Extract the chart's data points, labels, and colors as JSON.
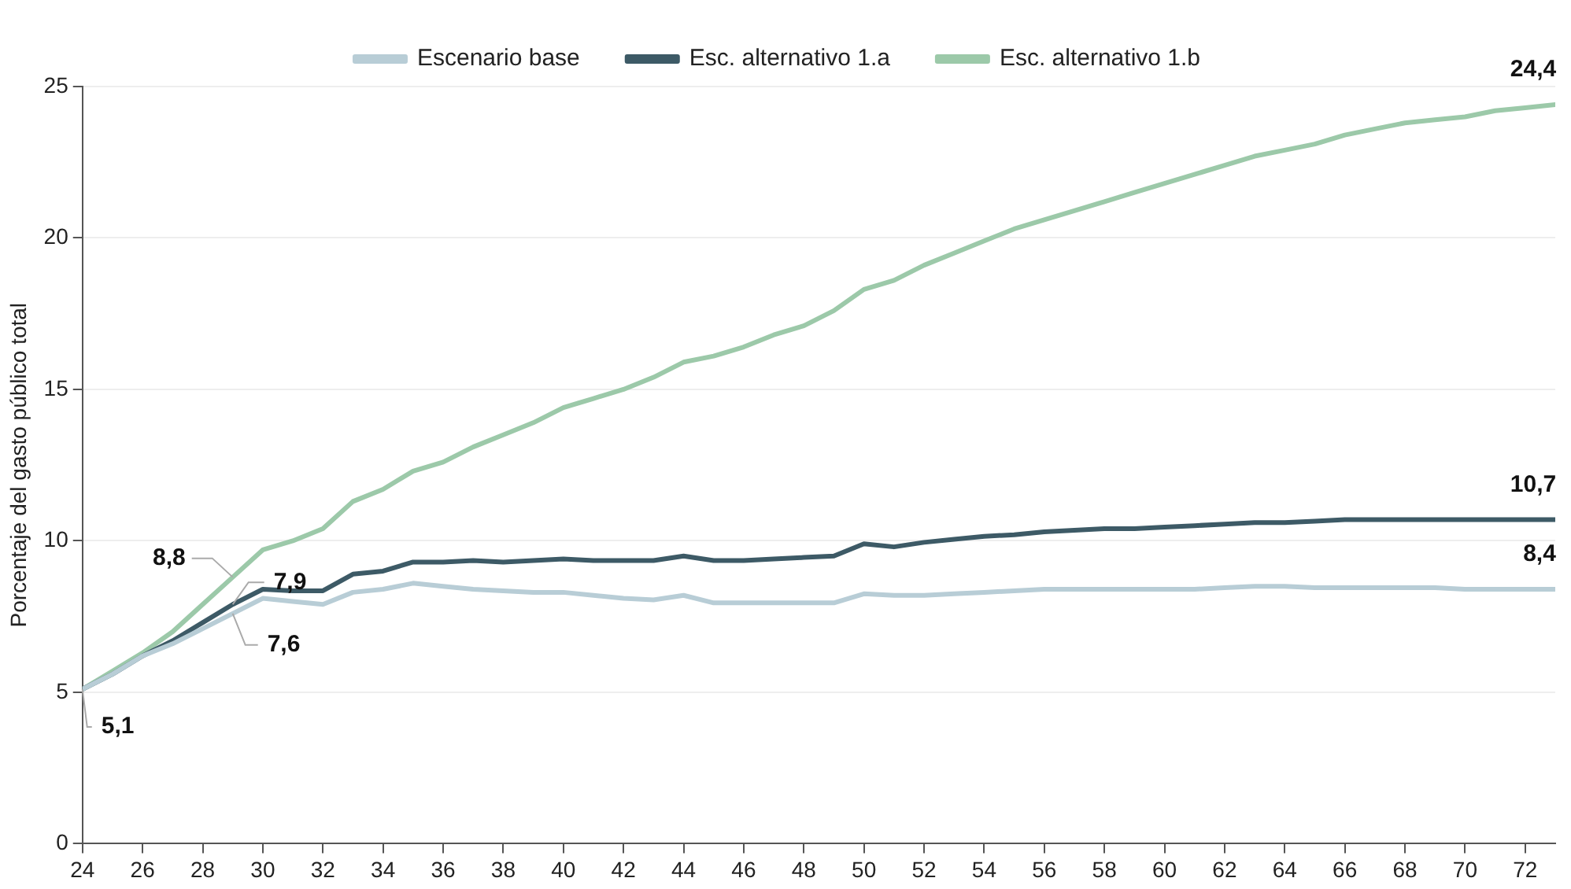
{
  "chart_data": {
    "type": "line",
    "ylabel": "Porcentaje del gasto público total",
    "x": [
      24,
      25,
      26,
      27,
      28,
      29,
      30,
      31,
      32,
      33,
      34,
      35,
      36,
      37,
      38,
      39,
      40,
      41,
      42,
      43,
      44,
      45,
      46,
      47,
      48,
      49,
      50,
      51,
      52,
      53,
      54,
      55,
      56,
      57,
      58,
      59,
      60,
      61,
      62,
      63,
      64,
      65,
      66,
      67,
      68,
      69,
      70,
      71,
      72,
      73
    ],
    "series": [
      {
        "name": "Escenario base",
        "color": "#b8cdd6",
        "values": [
          5.1,
          5.6,
          6.2,
          6.6,
          7.1,
          7.6,
          8.1,
          8.0,
          7.9,
          8.3,
          8.4,
          8.6,
          8.5,
          8.4,
          8.35,
          8.3,
          8.3,
          8.2,
          8.1,
          8.05,
          8.2,
          7.95,
          7.95,
          7.95,
          7.95,
          7.95,
          8.25,
          8.2,
          8.2,
          8.25,
          8.3,
          8.35,
          8.4,
          8.4,
          8.4,
          8.4,
          8.4,
          8.4,
          8.45,
          8.5,
          8.5,
          8.45,
          8.45,
          8.45,
          8.45,
          8.45,
          8.4,
          8.4,
          8.4,
          8.4
        ]
      },
      {
        "name": "Esc. alternativo 1.a",
        "color": "#3d5a66",
        "values": [
          5.1,
          5.6,
          6.2,
          6.7,
          7.3,
          7.9,
          8.4,
          8.35,
          8.35,
          8.9,
          9.0,
          9.3,
          9.3,
          9.35,
          9.3,
          9.35,
          9.4,
          9.35,
          9.35,
          9.35,
          9.5,
          9.35,
          9.35,
          9.4,
          9.45,
          9.5,
          9.9,
          9.8,
          9.95,
          10.05,
          10.15,
          10.2,
          10.3,
          10.35,
          10.4,
          10.4,
          10.45,
          10.5,
          10.55,
          10.6,
          10.6,
          10.65,
          10.7,
          10.7,
          10.7,
          10.7,
          10.7,
          10.7,
          10.7,
          10.7
        ]
      },
      {
        "name": "Esc. alternativo 1.b",
        "color": "#9cc9a9",
        "values": [
          5.1,
          5.7,
          6.3,
          7.0,
          7.9,
          8.8,
          9.7,
          10.0,
          10.4,
          11.3,
          11.7,
          12.3,
          12.6,
          13.1,
          13.5,
          13.9,
          14.4,
          14.7,
          15.0,
          15.4,
          15.9,
          16.1,
          16.4,
          16.8,
          17.1,
          17.6,
          18.3,
          18.6,
          19.1,
          19.5,
          19.9,
          20.3,
          20.6,
          20.9,
          21.2,
          21.5,
          21.8,
          22.1,
          22.4,
          22.7,
          22.9,
          23.1,
          23.4,
          23.6,
          23.8,
          23.9,
          24.0,
          24.2,
          24.3,
          24.4
        ]
      }
    ],
    "xlim": [
      24,
      73
    ],
    "xticks": [
      24,
      26,
      28,
      30,
      32,
      34,
      36,
      38,
      40,
      42,
      44,
      46,
      48,
      50,
      52,
      54,
      56,
      58,
      60,
      62,
      64,
      66,
      68,
      70,
      72
    ],
    "ylim": [
      0,
      25
    ],
    "yticks": [
      0,
      5,
      10,
      15,
      20,
      25
    ],
    "grid": "y",
    "legend": "top",
    "marker": "none",
    "line_style": "solid",
    "annotations": [
      {
        "text": "5,1",
        "x": 24,
        "y": 5.1
      },
      {
        "text": "8,8",
        "x": 29,
        "y": 8.8
      },
      {
        "text": "7,9",
        "x": 29,
        "y": 7.9
      },
      {
        "text": "7,6",
        "x": 29,
        "y": 7.6
      },
      {
        "text": "24,4",
        "x": 73,
        "y": 24.4
      },
      {
        "text": "10,7",
        "x": 73,
        "y": 10.7
      },
      {
        "text": "8,4",
        "x": 73,
        "y": 8.4
      }
    ]
  }
}
